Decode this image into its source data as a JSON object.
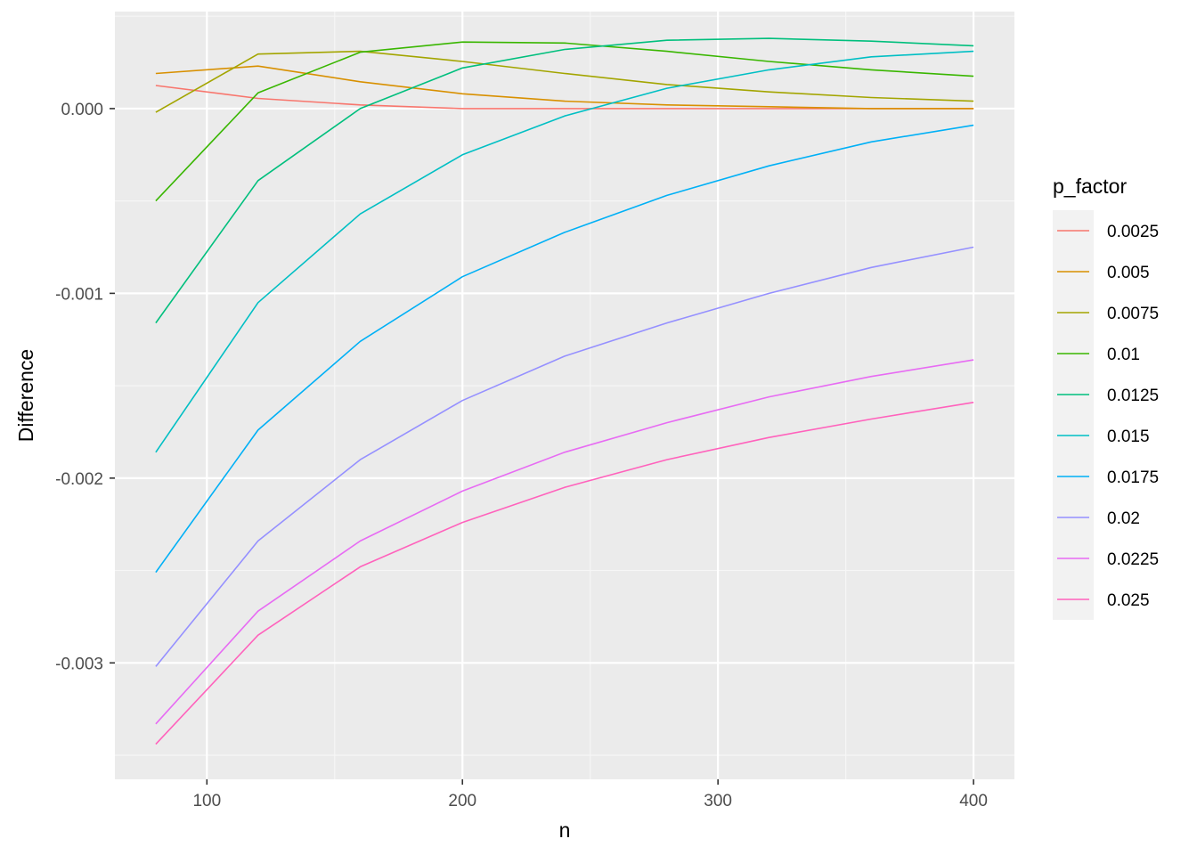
{
  "chart_data": {
    "type": "line",
    "title": "",
    "xlabel": "n",
    "ylabel": "Difference",
    "xlim": [
      64,
      416
    ],
    "ylim": [
      -0.00363,
      0.000525
    ],
    "x_ticks": [
      100,
      200,
      300,
      400
    ],
    "x_minor_ticks": [
      150,
      250,
      350
    ],
    "y_ticks": [
      0.0,
      -0.001,
      -0.002,
      -0.003
    ],
    "y_minor_ticks": [
      0.0005,
      -0.0005,
      -0.0015,
      -0.0025,
      -0.0035
    ],
    "x_tick_labels": [
      "100",
      "200",
      "300",
      "400"
    ],
    "y_tick_labels": [
      "0.000",
      "-0.001",
      "-0.002",
      "-0.003"
    ],
    "grid": true,
    "legend_title": "p_factor",
    "legend_position": "right",
    "x": [
      80,
      120,
      160,
      200,
      240,
      280,
      320,
      360,
      400
    ],
    "series": [
      {
        "name": "0.0025",
        "color": "#F8766D",
        "values": [
          0.000125,
          5.5e-05,
          2e-05,
          0.0,
          0.0,
          0.0,
          0.0,
          0.0,
          0.0
        ]
      },
      {
        "name": "0.005",
        "color": "#D89000",
        "values": [
          0.00019,
          0.00023,
          0.000145,
          8e-05,
          4e-05,
          2e-05,
          1e-05,
          0.0,
          0.0
        ]
      },
      {
        "name": "0.0075",
        "color": "#A3A500",
        "values": [
          -2e-05,
          0.000295,
          0.00031,
          0.000255,
          0.00019,
          0.00013,
          9e-05,
          6e-05,
          4e-05
        ]
      },
      {
        "name": "0.01",
        "color": "#39B600",
        "values": [
          -0.0005,
          8.5e-05,
          0.000305,
          0.00036,
          0.000355,
          0.00031,
          0.000255,
          0.00021,
          0.000175
        ]
      },
      {
        "name": "0.0125",
        "color": "#00BF7D",
        "values": [
          -0.00116,
          -0.00039,
          0.0,
          0.00022,
          0.00032,
          0.00037,
          0.00038,
          0.000365,
          0.00034
        ]
      },
      {
        "name": "0.015",
        "color": "#00BFC4",
        "values": [
          -0.00186,
          -0.00105,
          -0.00057,
          -0.00025,
          -4e-05,
          0.00011,
          0.00021,
          0.00028,
          0.00031
        ]
      },
      {
        "name": "0.0175",
        "color": "#00B0F6",
        "values": [
          -0.00251,
          -0.00174,
          -0.00126,
          -0.00091,
          -0.00067,
          -0.00047,
          -0.00031,
          -0.00018,
          -9e-05
        ]
      },
      {
        "name": "0.02",
        "color": "#9590FF",
        "values": [
          -0.00302,
          -0.00234,
          -0.0019,
          -0.00158,
          -0.00134,
          -0.00116,
          -0.001,
          -0.00086,
          -0.00075
        ]
      },
      {
        "name": "0.0225",
        "color": "#E76BF3",
        "values": [
          -0.00333,
          -0.00272,
          -0.00234,
          -0.00207,
          -0.00186,
          -0.0017,
          -0.00156,
          -0.00145,
          -0.00136
        ]
      },
      {
        "name": "0.025",
        "color": "#FF62BC",
        "values": [
          -0.00344,
          -0.00285,
          -0.00248,
          -0.00224,
          -0.00205,
          -0.0019,
          -0.00178,
          -0.00168,
          -0.00159
        ]
      }
    ]
  }
}
